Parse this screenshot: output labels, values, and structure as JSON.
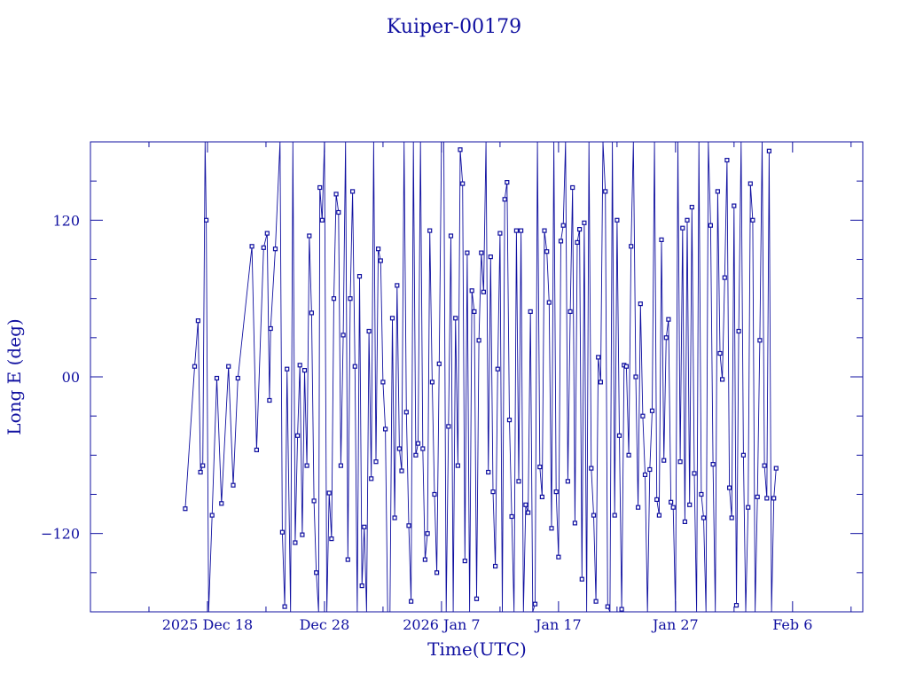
{
  "chart_data": {
    "type": "line",
    "title": "Kuiper-00179",
    "xlabel": "Time(UTC)",
    "ylabel": "Long E (deg)",
    "x_ticks": [
      {
        "label": "2025 Dec 18",
        "day": 18
      },
      {
        "label": "Dec 28",
        "day": 28
      },
      {
        "label": "2026 Jan  7",
        "day": 38
      },
      {
        "label": "Jan 17",
        "day": 48
      },
      {
        "label": "Jan 27",
        "day": 58
      },
      {
        "label": "Feb  6",
        "day": 68
      }
    ],
    "y_ticks": [
      {
        "label": "120",
        "value": 120
      },
      {
        "label": "00",
        "value": 0
      },
      {
        "label": "−120",
        "value": -120
      }
    ],
    "xlim_day": [
      8,
      74
    ],
    "ylim": [
      -180,
      180
    ],
    "series": [
      {
        "name": "",
        "points": [
          [
            16.1,
            -101
          ],
          [
            16.9,
            8
          ],
          [
            17.2,
            43
          ],
          [
            17.4,
            -73
          ],
          [
            17.6,
            -68
          ],
          [
            17.8,
            180
          ],
          [
            17.9,
            120
          ],
          [
            18.1,
            -180
          ],
          [
            18.4,
            -106
          ],
          [
            18.8,
            -1
          ],
          [
            19.2,
            -97
          ],
          [
            19.8,
            8
          ],
          [
            20.2,
            -83
          ],
          [
            20.6,
            -1
          ],
          [
            21.8,
            100
          ],
          [
            22.2,
            -56
          ],
          [
            22.8,
            99
          ],
          [
            23.1,
            110
          ],
          [
            23.3,
            -18
          ],
          [
            23.4,
            37
          ],
          [
            23.8,
            98
          ],
          [
            24.2,
            180
          ],
          [
            24.4,
            -119
          ],
          [
            24.6,
            -176
          ],
          [
            24.8,
            6
          ],
          [
            25.1,
            -180
          ],
          [
            25.3,
            180
          ],
          [
            25.5,
            -127
          ],
          [
            25.7,
            -45
          ],
          [
            25.9,
            9
          ],
          [
            26.1,
            -121
          ],
          [
            26.3,
            5
          ],
          [
            26.5,
            -68
          ],
          [
            26.7,
            108
          ],
          [
            26.9,
            49
          ],
          [
            27.1,
            -95
          ],
          [
            27.3,
            -150
          ],
          [
            27.5,
            -180
          ],
          [
            27.6,
            145
          ],
          [
            27.8,
            120
          ],
          [
            28.0,
            180
          ],
          [
            28.2,
            -180
          ],
          [
            28.4,
            -89
          ],
          [
            28.6,
            -124
          ],
          [
            28.8,
            60
          ],
          [
            29.0,
            140
          ],
          [
            29.2,
            126
          ],
          [
            29.4,
            -68
          ],
          [
            29.6,
            32
          ],
          [
            29.8,
            180
          ],
          [
            30.0,
            -140
          ],
          [
            30.2,
            60
          ],
          [
            30.4,
            142
          ],
          [
            30.6,
            8
          ],
          [
            30.8,
            -180
          ],
          [
            31.0,
            77
          ],
          [
            31.2,
            -160
          ],
          [
            31.4,
            -115
          ],
          [
            31.6,
            -180
          ],
          [
            31.8,
            35
          ],
          [
            32.0,
            -78
          ],
          [
            32.2,
            180
          ],
          [
            32.4,
            -65
          ],
          [
            32.6,
            98
          ],
          [
            32.8,
            89
          ],
          [
            33.0,
            -4
          ],
          [
            33.2,
            -40
          ],
          [
            33.4,
            -180
          ],
          [
            33.6,
            -180
          ],
          [
            33.8,
            45
          ],
          [
            34.0,
            -108
          ],
          [
            34.2,
            70
          ],
          [
            34.4,
            -55
          ],
          [
            34.6,
            -72
          ],
          [
            34.8,
            180
          ],
          [
            35.0,
            -27
          ],
          [
            35.2,
            -114
          ],
          [
            35.4,
            -172
          ],
          [
            35.6,
            180
          ],
          [
            35.8,
            -60
          ],
          [
            36.0,
            -51
          ],
          [
            36.2,
            180
          ],
          [
            36.4,
            -55
          ],
          [
            36.6,
            -140
          ],
          [
            36.8,
            -120
          ],
          [
            37.0,
            112
          ],
          [
            37.2,
            -4
          ],
          [
            37.4,
            -90
          ],
          [
            37.6,
            -150
          ],
          [
            37.8,
            10
          ],
          [
            38.0,
            180
          ],
          [
            38.2,
            180
          ],
          [
            38.4,
            -180
          ],
          [
            38.6,
            -38
          ],
          [
            38.8,
            108
          ],
          [
            39.0,
            -180
          ],
          [
            39.2,
            45
          ],
          [
            39.4,
            -68
          ],
          [
            39.6,
            174
          ],
          [
            39.8,
            148
          ],
          [
            40.0,
            -141
          ],
          [
            40.2,
            95
          ],
          [
            40.4,
            -180
          ],
          [
            40.6,
            66
          ],
          [
            40.8,
            50
          ],
          [
            41.0,
            -170
          ],
          [
            41.2,
            28
          ],
          [
            41.4,
            95
          ],
          [
            41.6,
            65
          ],
          [
            41.8,
            180
          ],
          [
            42.0,
            -73
          ],
          [
            42.2,
            92
          ],
          [
            42.4,
            -88
          ],
          [
            42.6,
            -145
          ],
          [
            42.8,
            6
          ],
          [
            43.0,
            110
          ],
          [
            43.2,
            -180
          ],
          [
            43.4,
            136
          ],
          [
            43.6,
            149
          ],
          [
            43.8,
            -33
          ],
          [
            44.0,
            -107
          ],
          [
            44.2,
            -180
          ],
          [
            44.4,
            112
          ],
          [
            44.6,
            -80
          ],
          [
            44.8,
            112
          ],
          [
            45.0,
            -180
          ],
          [
            45.2,
            -98
          ],
          [
            45.4,
            -104
          ],
          [
            45.6,
            50
          ],
          [
            45.8,
            -180
          ],
          [
            46.0,
            -174
          ],
          [
            46.2,
            180
          ],
          [
            46.4,
            -69
          ],
          [
            46.6,
            -92
          ],
          [
            46.8,
            112
          ],
          [
            47.0,
            96
          ],
          [
            47.2,
            57
          ],
          [
            47.4,
            -116
          ],
          [
            47.6,
            180
          ],
          [
            47.8,
            -88
          ],
          [
            48.0,
            -138
          ],
          [
            48.2,
            104
          ],
          [
            48.4,
            116
          ],
          [
            48.6,
            180
          ],
          [
            48.8,
            -80
          ],
          [
            49.0,
            50
          ],
          [
            49.2,
            145
          ],
          [
            49.4,
            -112
          ],
          [
            49.6,
            103
          ],
          [
            49.8,
            113
          ],
          [
            50.0,
            -155
          ],
          [
            50.2,
            118
          ],
          [
            50.4,
            -180
          ],
          [
            50.6,
            180
          ],
          [
            50.8,
            -70
          ],
          [
            51.0,
            -106
          ],
          [
            51.2,
            -172
          ],
          [
            51.4,
            15
          ],
          [
            51.6,
            -4
          ],
          [
            51.8,
            180
          ],
          [
            52.0,
            142
          ],
          [
            52.2,
            -176
          ],
          [
            52.4,
            -180
          ],
          [
            52.6,
            180
          ],
          [
            52.8,
            -106
          ],
          [
            53.0,
            120
          ],
          [
            53.2,
            -45
          ],
          [
            53.4,
            -178
          ],
          [
            53.6,
            9
          ],
          [
            53.8,
            8
          ],
          [
            54.0,
            -60
          ],
          [
            54.2,
            100
          ],
          [
            54.4,
            180
          ],
          [
            54.6,
            0
          ],
          [
            54.8,
            -100
          ],
          [
            55.0,
            56
          ],
          [
            55.2,
            -30
          ],
          [
            55.4,
            -75
          ],
          [
            55.6,
            -180
          ],
          [
            55.8,
            -71
          ],
          [
            56.0,
            -26
          ],
          [
            56.2,
            180
          ],
          [
            56.4,
            -94
          ],
          [
            56.6,
            -106
          ],
          [
            56.8,
            105
          ],
          [
            57.0,
            -64
          ],
          [
            57.2,
            30
          ],
          [
            57.4,
            44
          ],
          [
            57.6,
            -96
          ],
          [
            57.8,
            -100
          ],
          [
            58.0,
            -180
          ],
          [
            58.2,
            180
          ],
          [
            58.4,
            -65
          ],
          [
            58.6,
            114
          ],
          [
            58.8,
            -111
          ],
          [
            59.0,
            120
          ],
          [
            59.2,
            -98
          ],
          [
            59.4,
            130
          ],
          [
            59.6,
            -74
          ],
          [
            59.8,
            -180
          ],
          [
            60.0,
            180
          ],
          [
            60.2,
            -90
          ],
          [
            60.4,
            -108
          ],
          [
            60.6,
            -180
          ],
          [
            60.8,
            180
          ],
          [
            61.0,
            116
          ],
          [
            61.2,
            -67
          ],
          [
            61.4,
            -180
          ],
          [
            61.6,
            142
          ],
          [
            61.8,
            18
          ],
          [
            62.0,
            -2
          ],
          [
            62.2,
            76
          ],
          [
            62.4,
            166
          ],
          [
            62.6,
            -85
          ],
          [
            62.8,
            -108
          ],
          [
            63.0,
            131
          ],
          [
            63.2,
            -175
          ],
          [
            63.4,
            35
          ],
          [
            63.6,
            180
          ],
          [
            63.8,
            -60
          ],
          [
            64.0,
            -180
          ],
          [
            64.2,
            -100
          ],
          [
            64.4,
            148
          ],
          [
            64.6,
            120
          ],
          [
            64.8,
            -180
          ],
          [
            65.0,
            -92
          ],
          [
            65.2,
            28
          ],
          [
            65.4,
            180
          ],
          [
            65.6,
            -68
          ],
          [
            65.8,
            -93
          ],
          [
            66.0,
            173
          ],
          [
            66.2,
            -180
          ],
          [
            66.4,
            -93
          ],
          [
            66.6,
            -70
          ]
        ]
      }
    ]
  }
}
